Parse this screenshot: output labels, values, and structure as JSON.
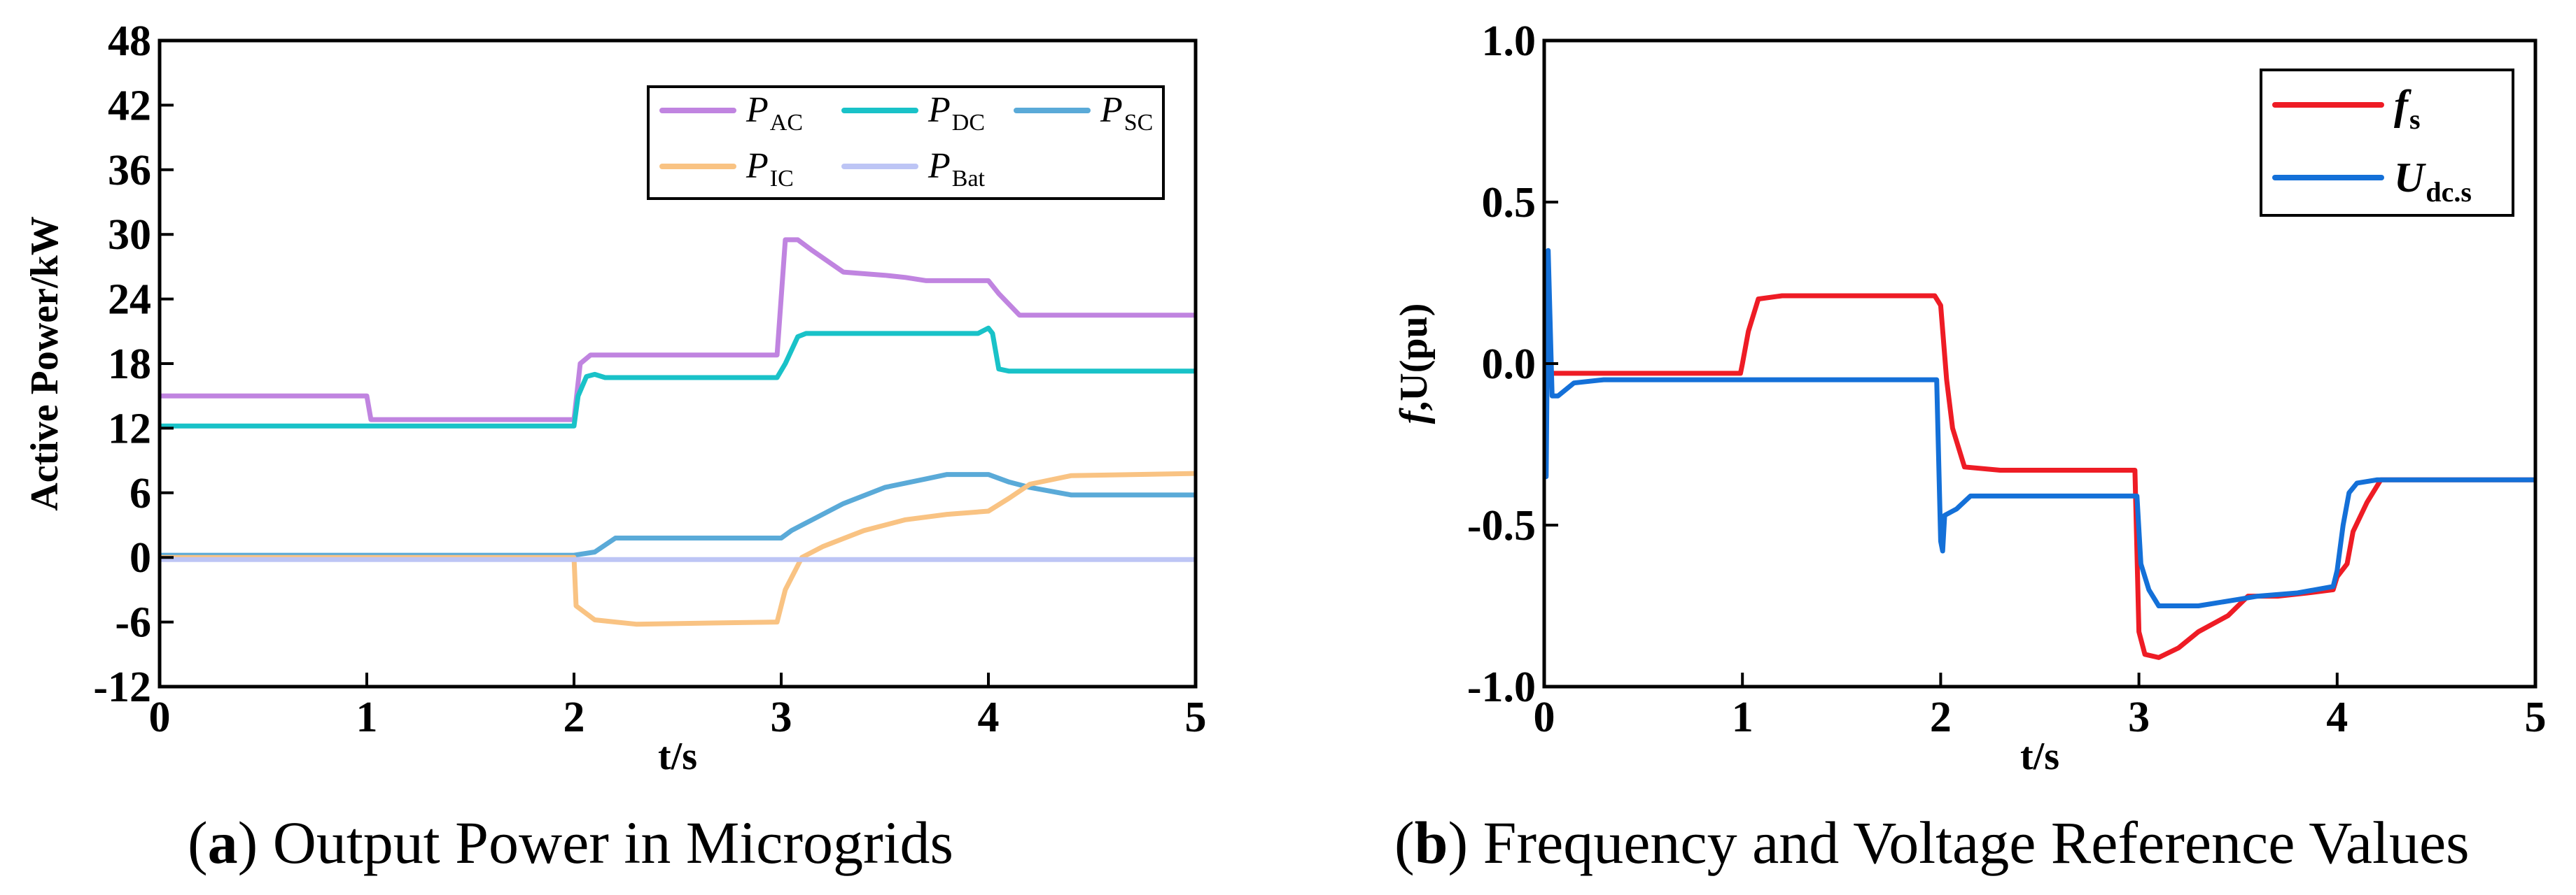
{
  "chart_data": [
    {
      "id": "a",
      "type": "line",
      "caption_letter": "a",
      "caption_text": " Output Power in Microgrids",
      "xlabel": "t/s",
      "ylabel": "Active Power/kW",
      "xlim": [
        0,
        5
      ],
      "ylim": [
        -12,
        48
      ],
      "xticks": [
        0,
        1,
        2,
        3,
        4,
        5
      ],
      "yticks": [
        -12,
        -6,
        0,
        6,
        12,
        18,
        24,
        30,
        36,
        42,
        48
      ],
      "grid": false,
      "legend_position": "top-right",
      "series": [
        {
          "key": "p_ac",
          "name": "P",
          "sub": "AC",
          "color": "#c084e0",
          "points": [
            [
              0,
              15
            ],
            [
              1.0,
              15
            ],
            [
              1.02,
              12.8
            ],
            [
              2.0,
              12.8
            ],
            [
              2.03,
              18
            ],
            [
              2.08,
              18.8
            ],
            [
              2.3,
              18.8
            ],
            [
              2.98,
              18.8
            ],
            [
              3.02,
              29.5
            ],
            [
              3.08,
              29.5
            ],
            [
              3.15,
              28.5
            ],
            [
              3.3,
              26.5
            ],
            [
              3.5,
              26.2
            ],
            [
              3.6,
              26
            ],
            [
              3.7,
              25.7
            ],
            [
              4.0,
              25.7
            ],
            [
              4.05,
              24.5
            ],
            [
              4.15,
              22.5
            ],
            [
              5,
              22.5
            ]
          ]
        },
        {
          "key": "p_dc",
          "name": "P",
          "sub": "DC",
          "color": "#19c2c8",
          "points": [
            [
              0,
              12.2
            ],
            [
              2.0,
              12.2
            ],
            [
              2.02,
              15
            ],
            [
              2.06,
              16.8
            ],
            [
              2.1,
              17
            ],
            [
              2.15,
              16.7
            ],
            [
              2.98,
              16.7
            ],
            [
              3.02,
              18
            ],
            [
              3.08,
              20.5
            ],
            [
              3.12,
              20.8
            ],
            [
              3.95,
              20.8
            ],
            [
              4.0,
              21.3
            ],
            [
              4.02,
              20.8
            ],
            [
              4.05,
              17.5
            ],
            [
              4.1,
              17.3
            ],
            [
              5,
              17.3
            ]
          ]
        },
        {
          "key": "p_sc",
          "name": "P",
          "sub": "SC",
          "color": "#5aaad8",
          "points": [
            [
              0,
              0.2
            ],
            [
              2.0,
              0.2
            ],
            [
              2.1,
              0.5
            ],
            [
              2.2,
              1.8
            ],
            [
              3.0,
              1.8
            ],
            [
              3.05,
              2.5
            ],
            [
              3.15,
              3.5
            ],
            [
              3.3,
              5
            ],
            [
              3.5,
              6.5
            ],
            [
              3.7,
              7.3
            ],
            [
              3.8,
              7.7
            ],
            [
              4.0,
              7.7
            ],
            [
              4.1,
              7
            ],
            [
              4.2,
              6.5
            ],
            [
              4.4,
              5.8
            ],
            [
              5,
              5.8
            ]
          ]
        },
        {
          "key": "p_ic",
          "name": "P",
          "sub": "IC",
          "color": "#f9c383",
          "points": [
            [
              0,
              0
            ],
            [
              2.0,
              0
            ],
            [
              2.01,
              -4.5
            ],
            [
              2.1,
              -5.8
            ],
            [
              2.3,
              -6.2
            ],
            [
              2.98,
              -6
            ],
            [
              3.02,
              -3
            ],
            [
              3.1,
              0
            ],
            [
              3.2,
              1
            ],
            [
              3.4,
              2.5
            ],
            [
              3.6,
              3.5
            ],
            [
              3.8,
              4
            ],
            [
              4.0,
              4.3
            ],
            [
              4.1,
              5.5
            ],
            [
              4.2,
              6.8
            ],
            [
              4.4,
              7.6
            ],
            [
              5,
              7.8
            ]
          ]
        },
        {
          "key": "p_bat",
          "name": "P",
          "sub": "Bat",
          "color": "#bdc5f5",
          "points": [
            [
              0,
              -0.2
            ],
            [
              5,
              -0.2
            ]
          ]
        }
      ],
      "legend_layout": [
        [
          "p_ac",
          "p_dc",
          "p_sc"
        ],
        [
          "p_ic",
          "p_bat"
        ]
      ]
    },
    {
      "id": "b",
      "type": "line",
      "caption_letter": "b",
      "caption_text": " Frequency and Voltage Reference Values",
      "xlabel": "t/s",
      "ylabel_italic": "f",
      "ylabel_rest": ",U(pu)",
      "xlim": [
        0,
        5
      ],
      "ylim": [
        -1.0,
        1.0
      ],
      "xticks": [
        0,
        1,
        2,
        3,
        4,
        5
      ],
      "yticks": [
        -1.0,
        -0.5,
        0.0,
        0.5,
        1.0
      ],
      "ytick_labels": [
        "-1.0",
        "-0.5",
        "0.0",
        "0.5",
        "1.0"
      ],
      "grid": false,
      "legend_position": "top-right",
      "series": [
        {
          "key": "f_s",
          "name": "f",
          "sub": "s",
          "color": "#ee1c25",
          "points": [
            [
              0,
              -0.03
            ],
            [
              0.99,
              -0.03
            ],
            [
              1.0,
              0.0
            ],
            [
              1.03,
              0.1
            ],
            [
              1.08,
              0.2
            ],
            [
              1.2,
              0.21
            ],
            [
              1.97,
              0.21
            ],
            [
              2.0,
              0.18
            ],
            [
              2.03,
              -0.05
            ],
            [
              2.06,
              -0.2
            ],
            [
              2.12,
              -0.32
            ],
            [
              2.3,
              -0.33
            ],
            [
              2.98,
              -0.33
            ],
            [
              3.0,
              -0.83
            ],
            [
              3.03,
              -0.9
            ],
            [
              3.1,
              -0.91
            ],
            [
              3.2,
              -0.88
            ],
            [
              3.3,
              -0.83
            ],
            [
              3.45,
              -0.78
            ],
            [
              3.55,
              -0.72
            ],
            [
              3.7,
              -0.72
            ],
            [
              3.85,
              -0.71
            ],
            [
              3.98,
              -0.7
            ],
            [
              4.0,
              -0.66
            ],
            [
              4.05,
              -0.62
            ],
            [
              4.08,
              -0.52
            ],
            [
              4.15,
              -0.43
            ],
            [
              4.22,
              -0.36
            ],
            [
              5,
              -0.36
            ]
          ]
        },
        {
          "key": "u_dc",
          "name": "U",
          "sub": "dc.s",
          "color": "#1470d8",
          "points": [
            [
              0,
              -0.05
            ],
            [
              0.01,
              -0.35
            ],
            [
              0.02,
              0.35
            ],
            [
              0.04,
              -0.1
            ],
            [
              0.07,
              -0.1
            ],
            [
              0.15,
              -0.06
            ],
            [
              0.3,
              -0.05
            ],
            [
              1.98,
              -0.05
            ],
            [
              2.0,
              -0.55
            ],
            [
              2.01,
              -0.58
            ],
            [
              2.02,
              -0.47
            ],
            [
              2.08,
              -0.45
            ],
            [
              2.15,
              -0.41
            ],
            [
              2.3,
              -0.41
            ],
            [
              2.99,
              -0.41
            ],
            [
              3.01,
              -0.62
            ],
            [
              3.05,
              -0.7
            ],
            [
              3.1,
              -0.75
            ],
            [
              3.3,
              -0.75
            ],
            [
              3.5,
              -0.73
            ],
            [
              3.6,
              -0.72
            ],
            [
              3.8,
              -0.71
            ],
            [
              3.98,
              -0.69
            ],
            [
              4.0,
              -0.64
            ],
            [
              4.03,
              -0.5
            ],
            [
              4.06,
              -0.4
            ],
            [
              4.1,
              -0.37
            ],
            [
              4.2,
              -0.36
            ],
            [
              5,
              -0.36
            ]
          ]
        }
      ],
      "legend_layout": [
        [
          "f_s"
        ],
        [
          "u_dc"
        ]
      ]
    }
  ]
}
